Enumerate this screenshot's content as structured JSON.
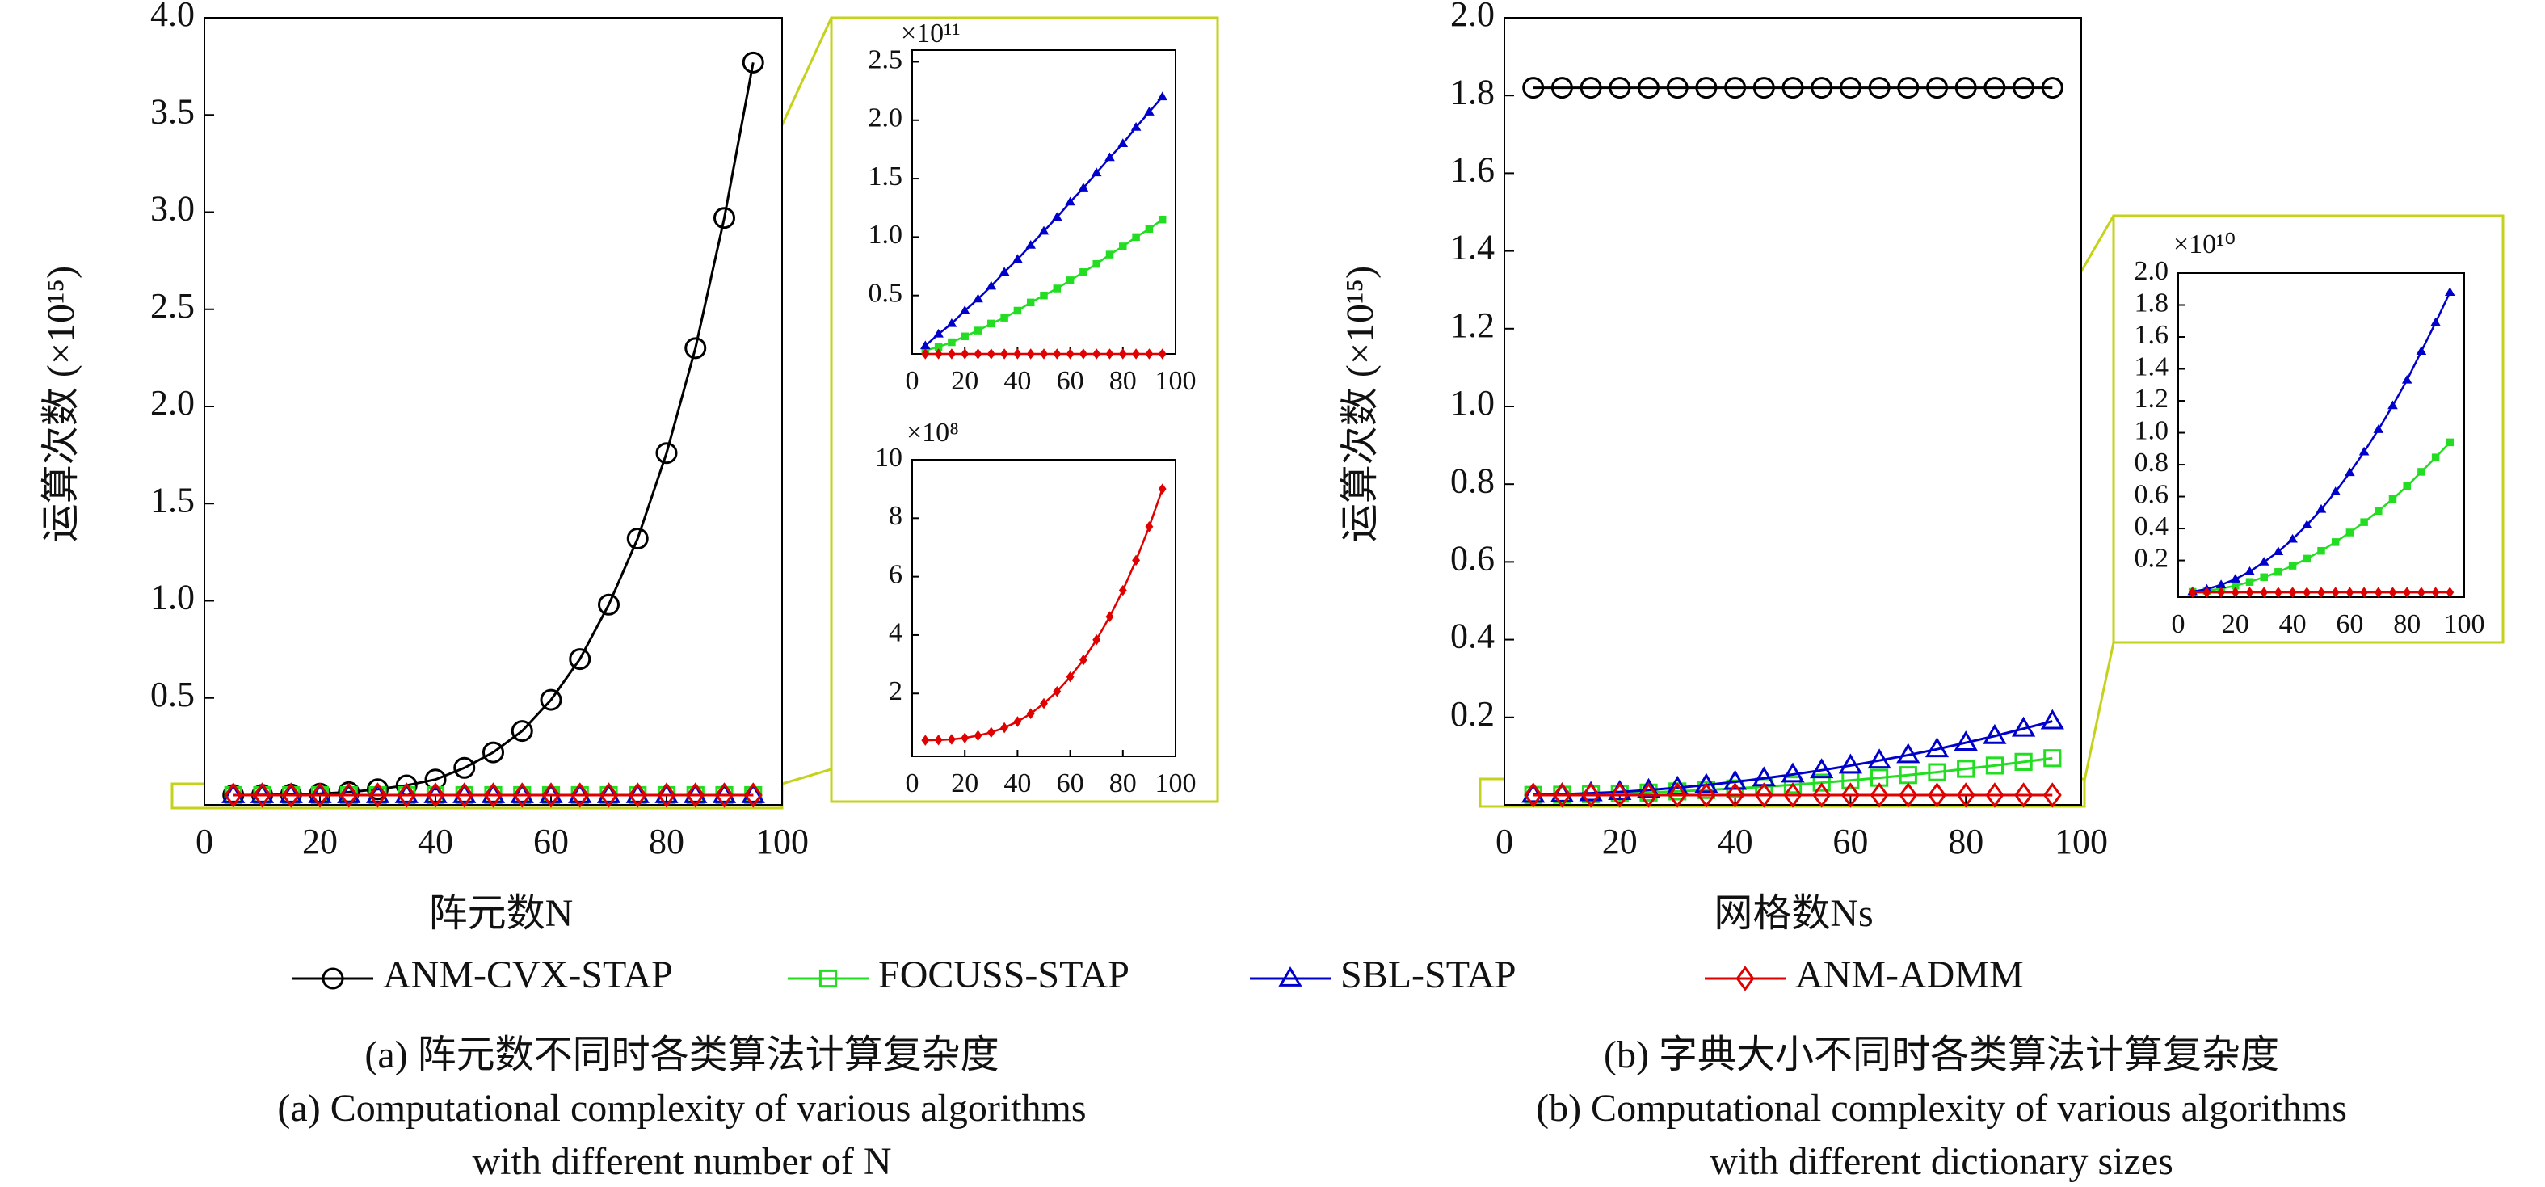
{
  "chart_data": [
    {
      "type": "line",
      "xlabel": "阵元数N",
      "ylabel": "运算次数 (×10¹⁵)",
      "x": [
        5,
        10,
        15,
        20,
        25,
        30,
        35,
        40,
        45,
        50,
        55,
        60,
        65,
        70,
        75,
        80,
        85,
        90,
        95
      ],
      "xlim": [
        0,
        100
      ],
      "xticks": [
        0,
        20,
        40,
        60,
        80,
        100
      ],
      "ylim": [
        -0.05,
        4.0
      ],
      "yticks": [
        0.5,
        {
          "value": 1,
          "label": "1.0"
        },
        1.5,
        {
          "value": 2,
          "label": "2.0"
        },
        2.5,
        {
          "value": 3,
          "label": "3.0"
        },
        3.5,
        {
          "value": 4,
          "label": "4.0"
        }
      ],
      "series": [
        {
          "name": "ANM-CVX-STAP",
          "color": "#000000",
          "marker": "circle",
          "values": [
            0.0,
            0.001,
            0.003,
            0.007,
            0.015,
            0.03,
            0.05,
            0.08,
            0.14,
            0.22,
            0.33,
            0.49,
            0.7,
            0.98,
            1.32,
            1.76,
            2.3,
            2.97,
            3.77
          ]
        },
        {
          "name": "FOCUSS-STAP",
          "color": "#22dd22",
          "marker": "square",
          "values": [
            0,
            0,
            0,
            0,
            0,
            0,
            0,
            0,
            0,
            0,
            0,
            0,
            0,
            0,
            0,
            0,
            0,
            0,
            0
          ]
        },
        {
          "name": "SBL-STAP",
          "color": "#0000cc",
          "marker": "triangle",
          "values": [
            0,
            0,
            0,
            0,
            0,
            0,
            0,
            0,
            0,
            0,
            0,
            0,
            0,
            0,
            0,
            0,
            0,
            0,
            0
          ]
        },
        {
          "name": "ANM-ADMM",
          "color": "#e00000",
          "marker": "diamond",
          "values": [
            0,
            0,
            0,
            0,
            0,
            0,
            0,
            0,
            0,
            0,
            0,
            0,
            0,
            0,
            0,
            0,
            0,
            0,
            0
          ]
        }
      ],
      "caption": [
        "(a) 阵元数不同时各类算法计算复杂度",
        "(a) Computational complexity of various algorithms",
        "with different number of N"
      ]
    },
    {
      "type": "line",
      "scale_label": "×10¹¹",
      "x": [
        5,
        10,
        15,
        20,
        25,
        30,
        35,
        40,
        45,
        50,
        55,
        60,
        65,
        70,
        75,
        80,
        85,
        90,
        95
      ],
      "xlim": [
        0,
        100
      ],
      "xticks": [
        0,
        20,
        40,
        60,
        80,
        100
      ],
      "ylim": [
        0,
        2.6
      ],
      "yticks": [
        0.5,
        {
          "value": 1,
          "label": "1.0"
        },
        1.5,
        {
          "value": 2,
          "label": "2.0"
        },
        2.5
      ],
      "series": [
        {
          "color": "#22dd22",
          "marker": "square",
          "values": [
            0.03,
            0.06,
            0.1,
            0.15,
            0.2,
            0.26,
            0.31,
            0.37,
            0.44,
            0.5,
            0.56,
            0.63,
            0.7,
            0.77,
            0.85,
            0.92,
            1.0,
            1.07,
            1.15
          ]
        },
        {
          "color": "#0000cc",
          "marker": "triangle",
          "values": [
            0.07,
            0.17,
            0.26,
            0.37,
            0.47,
            0.58,
            0.7,
            0.81,
            0.93,
            1.05,
            1.17,
            1.3,
            1.42,
            1.55,
            1.68,
            1.8,
            1.94,
            2.07,
            2.2
          ]
        },
        {
          "color": "#e00000",
          "marker": "diamond",
          "values": [
            0,
            0,
            0,
            0,
            0,
            0,
            0,
            0,
            0,
            0,
            0,
            0,
            0,
            0,
            0,
            0,
            0,
            0,
            0
          ]
        }
      ]
    },
    {
      "type": "line",
      "scale_label": "×10⁸",
      "x": [
        5,
        10,
        15,
        20,
        25,
        30,
        35,
        40,
        45,
        50,
        55,
        60,
        65,
        70,
        75,
        80,
        85,
        90,
        95
      ],
      "xlim": [
        0,
        100
      ],
      "xticks": [
        0,
        20,
        40,
        60,
        80,
        100
      ],
      "ylim": [
        -0.15,
        10
      ],
      "yticks": [
        2,
        4,
        6,
        8,
        10
      ],
      "series": [
        {
          "color": "#e00000",
          "marker": "diamond",
          "values": [
            0.4,
            0.41,
            0.43,
            0.48,
            0.56,
            0.67,
            0.83,
            1.04,
            1.31,
            1.66,
            2.07,
            2.57,
            3.15,
            3.84,
            4.63,
            5.53,
            6.56,
            7.71,
            9.0
          ]
        }
      ]
    },
    {
      "type": "line",
      "xlabel": "网格数Ns",
      "ylabel": "运算次数 (×10¹⁵)",
      "x": [
        5,
        10,
        15,
        20,
        25,
        30,
        35,
        40,
        45,
        50,
        55,
        60,
        65,
        70,
        75,
        80,
        85,
        90,
        95
      ],
      "xlim": [
        0,
        100
      ],
      "xticks": [
        0,
        20,
        40,
        60,
        80,
        100
      ],
      "ylim": [
        -0.025,
        2.0
      ],
      "yticks": [
        0.2,
        0.4,
        0.6,
        0.8,
        {
          "value": 1,
          "label": "1.0"
        },
        1.2,
        1.4,
        1.6,
        1.8,
        {
          "value": 2,
          "label": "2.0"
        }
      ],
      "series": [
        {
          "color": "#000000",
          "marker": "circle",
          "values": [
            1.82,
            1.82,
            1.82,
            1.82,
            1.82,
            1.82,
            1.82,
            1.82,
            1.82,
            1.82,
            1.82,
            1.82,
            1.82,
            1.82,
            1.82,
            1.82,
            1.82,
            1.82,
            1.82
          ]
        },
        {
          "color": "#22dd22",
          "marker": "square",
          "values": [
            0.0005,
            0.001,
            0.0025,
            0.004,
            0.0065,
            0.0095,
            0.013,
            0.017,
            0.0215,
            0.0265,
            0.032,
            0.038,
            0.0445,
            0.0515,
            0.059,
            0.0675,
            0.076,
            0.0855,
            0.095
          ]
        },
        {
          "color": "#0000cc",
          "marker": "triangle",
          "values": [
            0.001,
            0.002,
            0.005,
            0.008,
            0.013,
            0.019,
            0.026,
            0.034,
            0.043,
            0.053,
            0.064,
            0.076,
            0.089,
            0.103,
            0.118,
            0.135,
            0.152,
            0.171,
            0.19
          ]
        },
        {
          "color": "#e00000",
          "marker": "diamond",
          "values": [
            0,
            0,
            0,
            0,
            0,
            0,
            0,
            0,
            0,
            0,
            0,
            0,
            0,
            0,
            0,
            0,
            0,
            0,
            0
          ]
        }
      ],
      "caption": [
        "(b) 字典大小不同时各类算法计算复杂度",
        "(b) Computational complexity of various algorithms",
        "with different dictionary sizes"
      ]
    },
    {
      "type": "line",
      "scale_label": "×10¹⁰",
      "x": [
        5,
        10,
        15,
        20,
        25,
        30,
        35,
        40,
        45,
        50,
        55,
        60,
        65,
        70,
        75,
        80,
        85,
        90,
        95
      ],
      "xlim": [
        0,
        100
      ],
      "xticks": [
        0,
        20,
        40,
        60,
        80,
        100
      ],
      "ylim": [
        -0.03,
        2.0
      ],
      "yticks": [
        0.2,
        0.4,
        0.6,
        0.8,
        {
          "value": 1,
          "label": "1.0"
        },
        1.2,
        1.4,
        1.6,
        1.8,
        {
          "value": 2,
          "label": "2.0"
        }
      ],
      "series": [
        {
          "color": "#22dd22",
          "marker": "square",
          "values": [
            0.003,
            0.01,
            0.023,
            0.042,
            0.065,
            0.095,
            0.128,
            0.167,
            0.211,
            0.26,
            0.315,
            0.375,
            0.44,
            0.51,
            0.585,
            0.665,
            0.755,
            0.845,
            0.94
          ]
        },
        {
          "color": "#0000cc",
          "marker": "triangle",
          "values": [
            0.005,
            0.02,
            0.047,
            0.083,
            0.13,
            0.19,
            0.255,
            0.333,
            0.422,
            0.52,
            0.63,
            0.75,
            0.88,
            1.02,
            1.17,
            1.33,
            1.51,
            1.69,
            1.88
          ]
        },
        {
          "color": "#e00000",
          "marker": "diamond",
          "values": [
            0,
            0,
            0,
            0,
            0,
            0,
            0,
            0,
            0,
            0,
            0,
            0,
            0,
            0,
            0,
            0,
            0,
            0,
            0
          ]
        }
      ]
    }
  ]
}
